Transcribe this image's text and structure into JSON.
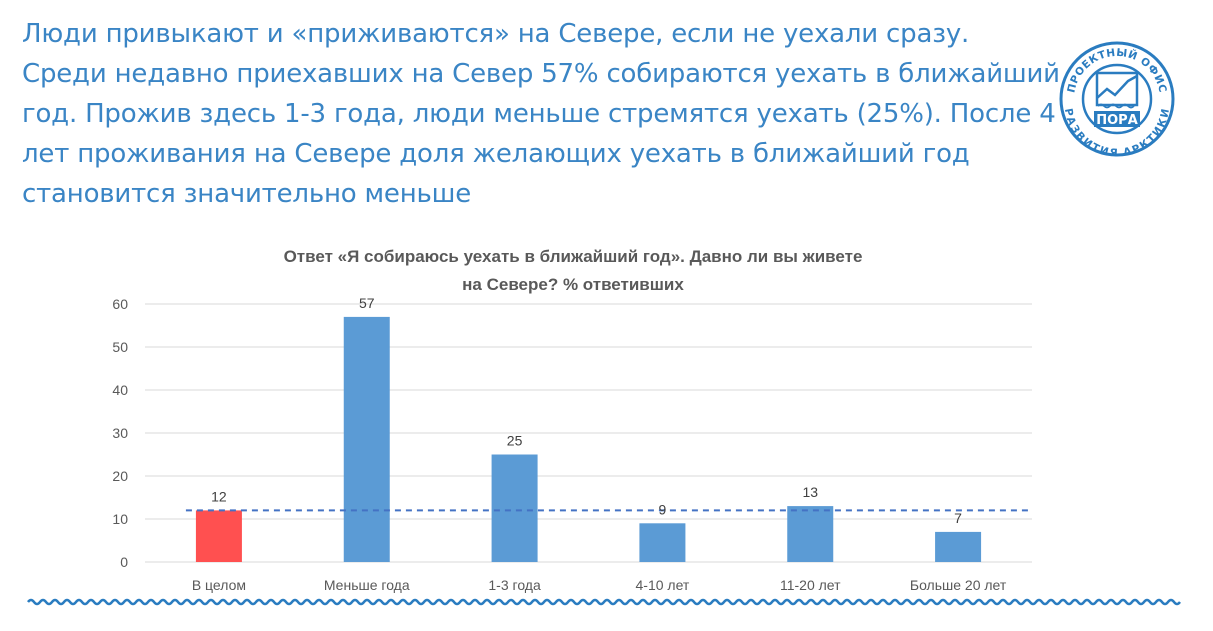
{
  "headline": {
    "lines": [
      "Люди привыкают и «приживаются» на Севере, если не уехали сразу.",
      "Среди недавно приехавших на Север 57% собираются уехать в ближайший",
      "год. Прожив здесь 1-3 года, люди меньше стремятся уехать (25%). После 4",
      "лет проживания на Севере доля желающих уехать в ближайший год",
      "становится значительно меньше"
    ]
  },
  "logo": {
    "top_text": "ПРОЕКТНЫЙ ОФИС",
    "bottom_text": "РАЗВИТИЯ АРКТИКИ",
    "center_text": "ПОРА",
    "color": "#2a7cc0"
  },
  "chart_data": {
    "type": "bar",
    "title_lines": [
      "Ответ «Я собираюсь уехать в ближайший год». Давно ли вы живете",
      "на Севере? % ответивших"
    ],
    "categories": [
      "В целом",
      "Меньше года",
      "1-3 года",
      "4-10 лет",
      "11-20 лет",
      "Больше 20 лет"
    ],
    "values": [
      12,
      57,
      25,
      9,
      13,
      7
    ],
    "data_labels": [
      "12",
      "57",
      "25",
      "9",
      "13",
      "7"
    ],
    "highlight_index": 0,
    "highlight_color": "#ff5050",
    "bar_color": "#5b9bd5",
    "reference_line": 12,
    "reference_color": "#4472c4",
    "ylim": [
      0,
      60
    ],
    "yticks": [
      "0",
      "10",
      "20",
      "30",
      "40",
      "50",
      "60"
    ],
    "grid": true
  },
  "decoration": {
    "wave_color": "#2a7cc0"
  }
}
